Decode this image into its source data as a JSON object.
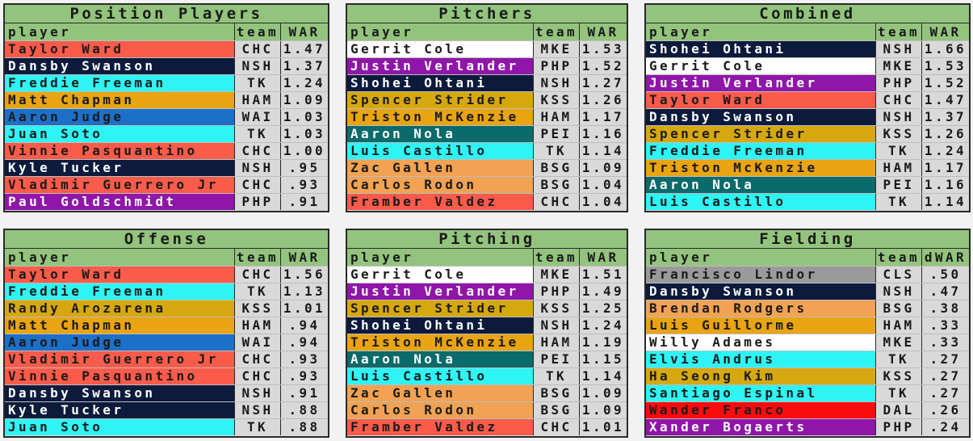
{
  "team_colors": {
    "CHC": {
      "bg": "#fb5b4b",
      "fg": "#1a1a1a"
    },
    "NSH": {
      "bg": "#0c1a3c",
      "fg": "#ffffff"
    },
    "TK": {
      "bg": "#2ff4f4",
      "fg": "#1a1a1a"
    },
    "HAM": {
      "bg": "#e9a412",
      "fg": "#1a1a1a"
    },
    "WAI": {
      "bg": "#1d6fc7",
      "fg": "#1a1a1a"
    },
    "PHP": {
      "bg": "#8f16a8",
      "fg": "#ffffff"
    },
    "MKE": {
      "bg": "#ffffff",
      "fg": "#1a1a1a"
    },
    "KSS": {
      "bg": "#d6a810",
      "fg": "#1a1a1a"
    },
    "PEI": {
      "bg": "#0b6a6a",
      "fg": "#ffffff"
    },
    "BSG": {
      "bg": "#f1a253",
      "fg": "#1a1a1a"
    },
    "CLS": {
      "bg": "#9a9a9a",
      "fg": "#1a1a1a"
    },
    "DAL": {
      "bg": "#fb0c0c",
      "fg": "#1a1a1a"
    }
  },
  "panels": [
    {
      "title": "Position Players",
      "header": [
        "player",
        "team",
        "WAR"
      ],
      "rows": [
        [
          "Taylor Ward",
          "CHC",
          "1.47"
        ],
        [
          "Dansby Swanson",
          "NSH",
          "1.37"
        ],
        [
          "Freddie Freeman",
          "TK",
          "1.24"
        ],
        [
          "Matt Chapman",
          "HAM",
          "1.09"
        ],
        [
          "Aaron Judge",
          "WAI",
          "1.03"
        ],
        [
          "Juan Soto",
          "TK",
          "1.03"
        ],
        [
          "Vinnie Pasquantino",
          "CHC",
          "1.00"
        ],
        [
          "Kyle Tucker",
          "NSH",
          ".95"
        ],
        [
          "Vladimir Guerrero Jr",
          "CHC",
          ".93"
        ],
        [
          "Paul Goldschmidt",
          "PHP",
          ".91"
        ]
      ]
    },
    {
      "title": "Pitchers",
      "header": [
        "player",
        "team",
        "WAR"
      ],
      "rows": [
        [
          "Gerrit Cole",
          "MKE",
          "1.53"
        ],
        [
          "Justin Verlander",
          "PHP",
          "1.52"
        ],
        [
          "Shohei Ohtani",
          "NSH",
          "1.27"
        ],
        [
          "Spencer Strider",
          "KSS",
          "1.26"
        ],
        [
          "Triston McKenzie",
          "HAM",
          "1.17"
        ],
        [
          "Aaron Nola",
          "PEI",
          "1.16"
        ],
        [
          "Luis Castillo",
          "TK",
          "1.14"
        ],
        [
          "Zac Gallen",
          "BSG",
          "1.09"
        ],
        [
          "Carlos Rodon",
          "BSG",
          "1.04"
        ],
        [
          "Framber Valdez",
          "CHC",
          "1.04"
        ]
      ]
    },
    {
      "title": "Combined",
      "header": [
        "player",
        "team",
        "WAR"
      ],
      "rows": [
        [
          "Shohei Ohtani",
          "NSH",
          "1.66"
        ],
        [
          "Gerrit Cole",
          "MKE",
          "1.53"
        ],
        [
          "Justin Verlander",
          "PHP",
          "1.52"
        ],
        [
          "Taylor Ward",
          "CHC",
          "1.47"
        ],
        [
          "Dansby Swanson",
          "NSH",
          "1.37"
        ],
        [
          "Spencer Strider",
          "KSS",
          "1.26"
        ],
        [
          "Freddie Freeman",
          "TK",
          "1.24"
        ],
        [
          "Triston McKenzie",
          "HAM",
          "1.17"
        ],
        [
          "Aaron Nola",
          "PEI",
          "1.16"
        ],
        [
          "Luis Castillo",
          "TK",
          "1.14"
        ]
      ]
    },
    {
      "title": "Offense",
      "header": [
        "player",
        "team",
        "WAR"
      ],
      "rows": [
        [
          "Taylor Ward",
          "CHC",
          "1.56"
        ],
        [
          "Freddie Freeman",
          "TK",
          "1.13"
        ],
        [
          "Randy Arozarena",
          "KSS",
          "1.01"
        ],
        [
          "Matt Chapman",
          "HAM",
          ".94"
        ],
        [
          "Aaron Judge",
          "WAI",
          ".94"
        ],
        [
          "Vladimir Guerrero Jr",
          "CHC",
          ".93"
        ],
        [
          "Vinnie Pasquantino",
          "CHC",
          ".93"
        ],
        [
          "Dansby Swanson",
          "NSH",
          ".91"
        ],
        [
          "Kyle Tucker",
          "NSH",
          ".88"
        ],
        [
          "Juan Soto",
          "TK",
          ".88"
        ]
      ]
    },
    {
      "title": "Pitching",
      "header": [
        "player",
        "team",
        "WAR"
      ],
      "rows": [
        [
          "Gerrit Cole",
          "MKE",
          "1.51"
        ],
        [
          "Justin Verlander",
          "PHP",
          "1.49"
        ],
        [
          "Spencer Strider",
          "KSS",
          "1.25"
        ],
        [
          "Shohei Ohtani",
          "NSH",
          "1.24"
        ],
        [
          "Triston McKenzie",
          "HAM",
          "1.19"
        ],
        [
          "Aaron Nola",
          "PEI",
          "1.15"
        ],
        [
          "Luis Castillo",
          "TK",
          "1.14"
        ],
        [
          "Zac Gallen",
          "BSG",
          "1.09"
        ],
        [
          "Carlos Rodon",
          "BSG",
          "1.09"
        ],
        [
          "Framber Valdez",
          "CHC",
          "1.01"
        ]
      ]
    },
    {
      "title": "Fielding",
      "header": [
        "player",
        "team",
        "dWAR"
      ],
      "rows": [
        [
          "Francisco Lindor",
          "CLS",
          ".50"
        ],
        [
          "Dansby Swanson",
          "NSH",
          ".47"
        ],
        [
          "Brendan Rodgers",
          "BSG",
          ".38"
        ],
        [
          "Luis Guillorme",
          "HAM",
          ".33"
        ],
        [
          "Willy Adames",
          "MKE",
          ".33"
        ],
        [
          "Elvis Andrus",
          "TK",
          ".27"
        ],
        [
          "Ha Seong Kim",
          "KSS",
          ".27"
        ],
        [
          "Santiago Espinal",
          "TK",
          ".27"
        ],
        [
          "Wander Franco",
          "DAL",
          ".26"
        ],
        [
          "Xander Bogaerts",
          "PHP",
          ".24"
        ]
      ]
    }
  ]
}
